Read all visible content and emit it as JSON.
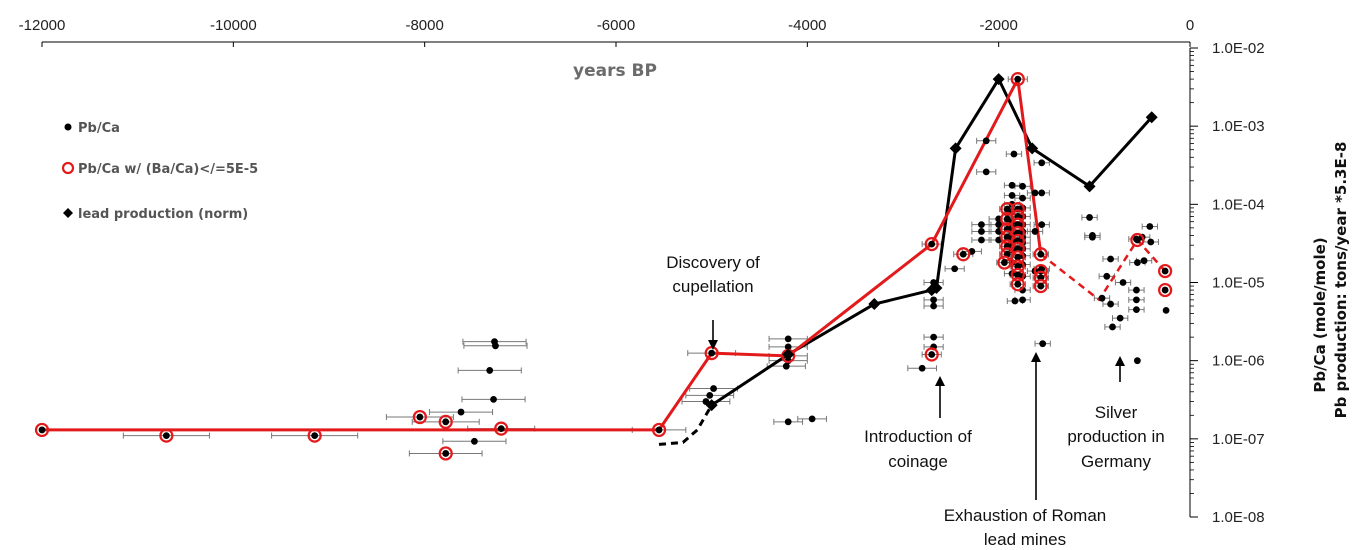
{
  "chart_data": {
    "type": "scatter",
    "title": "years BP",
    "xlabel": "years BP",
    "ylabel_lines": [
      "Pb/Ca (mole/mole)",
      "Pb production: tons/year *5.3E-8"
    ],
    "xlim": [
      -12000,
      0
    ],
    "ylim": [
      1e-08,
      0.01
    ],
    "yscale": "log",
    "x_axis_position": "top",
    "y_axis_position": "right",
    "grid": false,
    "legend_position": "top-left",
    "x_ticks": [
      -12000,
      -10000,
      -8000,
      -6000,
      -4000,
      -2000,
      0
    ],
    "x_tick_labels": [
      "-12000",
      "-10000",
      "-8000",
      "-6000",
      "-4000",
      "-2000",
      "0"
    ],
    "y_ticks": [
      0.01,
      0.001,
      0.0001,
      1e-05,
      1e-06,
      1e-07,
      1e-08
    ],
    "y_tick_labels": [
      "1.0E-02",
      "1.0E-03",
      "1.0E-04",
      "1.0E-05",
      "1.0E-06",
      "1.0E-07",
      "1.0E-08"
    ],
    "legend": [
      {
        "label": "Pb/Ca",
        "marker": "dot"
      },
      {
        "label": "Pb/Ca w/ (Ba/Ca)</=5E-5",
        "marker": "red-circle"
      },
      {
        "label": "lead production (norm)",
        "marker": "diamond"
      }
    ],
    "colors": {
      "red": "#e31a1c",
      "black": "#000000",
      "errorbar": "#777777"
    },
    "series": [
      {
        "name": "Pb/Ca",
        "points": [
          {
            "x": -7270,
            "y": 1.75e-06,
            "xerr": 330
          },
          {
            "x": -7260,
            "y": 1.55e-06,
            "xerr": 330
          },
          {
            "x": -7320,
            "y": 7.5e-07,
            "xerr": 330
          },
          {
            "x": -7280,
            "y": 3.2e-07,
            "xerr": 330
          },
          {
            "x": -7620,
            "y": 2.2e-07,
            "xerr": 330
          },
          {
            "x": -7480,
            "y": 9.3e-08,
            "xerr": 330
          },
          {
            "x": -4980,
            "y": 4.4e-07,
            "xerr": 250
          },
          {
            "x": -5020,
            "y": 3.6e-07,
            "xerr": 250
          },
          {
            "x": -5060,
            "y": 3e-07,
            "xerr": 250
          },
          {
            "x": -4200,
            "y": 1.9e-06,
            "xerr": 200
          },
          {
            "x": -4200,
            "y": 1.5e-06,
            "xerr": 200
          },
          {
            "x": -4200,
            "y": 1e-06,
            "xerr": 200
          },
          {
            "x": -4220,
            "y": 8.5e-07,
            "xerr": 200
          },
          {
            "x": -4200,
            "y": 1.65e-07,
            "xerr": 150
          },
          {
            "x": -3950,
            "y": 1.8e-07,
            "xerr": 150
          },
          {
            "x": -2800,
            "y": 8e-07,
            "xerr": 150
          },
          {
            "x": -2680,
            "y": 2e-06,
            "xerr": 100
          },
          {
            "x": -2680,
            "y": 1.5e-06,
            "xerr": 100
          },
          {
            "x": -2680,
            "y": 6e-06,
            "xerr": 100
          },
          {
            "x": -2680,
            "y": 5e-06,
            "xerr": 100
          },
          {
            "x": -2680,
            "y": 1e-05,
            "xerr": 100
          },
          {
            "x": -2460,
            "y": 1.5e-05,
            "xerr": 100
          },
          {
            "x": -2280,
            "y": 2.5e-05,
            "xerr": 100
          },
          {
            "x": -2180,
            "y": 3.5e-05,
            "xerr": 100
          },
          {
            "x": -2180,
            "y": 4.5e-05,
            "xerr": 100
          },
          {
            "x": -2180,
            "y": 5.5e-05,
            "xerr": 100
          },
          {
            "x": -2000,
            "y": 3.5e-05,
            "xerr": 100
          },
          {
            "x": -2000,
            "y": 4.5e-05,
            "xerr": 100
          },
          {
            "x": -2000,
            "y": 5.5e-05,
            "xerr": 100
          },
          {
            "x": -2000,
            "y": 6.5e-05,
            "xerr": 100
          },
          {
            "x": -2130,
            "y": 0.00065,
            "xerr": 100
          },
          {
            "x": -2130,
            "y": 0.00026,
            "xerr": 100
          },
          {
            "x": -1860,
            "y": 0.000175,
            "xerr": 80
          },
          {
            "x": -1860,
            "y": 0.00013,
            "xerr": 80
          },
          {
            "x": -1860,
            "y": 0.0001,
            "xerr": 80
          },
          {
            "x": -1860,
            "y": 8e-05,
            "xerr": 80
          },
          {
            "x": -1860,
            "y": 6e-05,
            "xerr": 80
          },
          {
            "x": -1860,
            "y": 5e-05,
            "xerr": 80
          },
          {
            "x": -1860,
            "y": 4.2e-05,
            "xerr": 80
          },
          {
            "x": -1860,
            "y": 3.5e-05,
            "xerr": 80
          },
          {
            "x": -1860,
            "y": 3e-05,
            "xerr": 80
          },
          {
            "x": -1860,
            "y": 2.6e-05,
            "xerr": 80
          },
          {
            "x": -1860,
            "y": 1.8e-05,
            "xerr": 80
          },
          {
            "x": -1860,
            "y": 1.3e-05,
            "xerr": 80
          },
          {
            "x": -1840,
            "y": 0.00044,
            "xerr": 80
          },
          {
            "x": -1750,
            "y": 0.00017,
            "xerr": 80
          },
          {
            "x": -1750,
            "y": 0.00012,
            "xerr": 80
          },
          {
            "x": -1750,
            "y": 9e-05,
            "xerr": 80
          },
          {
            "x": -1750,
            "y": 7e-05,
            "xerr": 80
          },
          {
            "x": -1750,
            "y": 5.5e-05,
            "xerr": 80
          },
          {
            "x": -1750,
            "y": 4.5e-05,
            "xerr": 80
          },
          {
            "x": -1750,
            "y": 3.8e-05,
            "xerr": 80
          },
          {
            "x": -1750,
            "y": 3.2e-05,
            "xerr": 80
          },
          {
            "x": -1750,
            "y": 2.7e-05,
            "xerr": 80
          },
          {
            "x": -1750,
            "y": 2.2e-05,
            "xerr": 80
          },
          {
            "x": -1750,
            "y": 1.7e-05,
            "xerr": 80
          },
          {
            "x": -1750,
            "y": 1.2e-05,
            "xerr": 80
          },
          {
            "x": -1750,
            "y": 8e-06,
            "xerr": 80
          },
          {
            "x": -1750,
            "y": 6e-06,
            "xerr": 80
          },
          {
            "x": -1830,
            "y": 5.8e-06,
            "xerr": 80
          },
          {
            "x": -1620,
            "y": 0.00014,
            "xerr": 80
          },
          {
            "x": -1620,
            "y": 4.5e-05,
            "xerr": 80
          },
          {
            "x": -1620,
            "y": 1.4e-05,
            "xerr": 80
          },
          {
            "x": -1550,
            "y": 0.00034,
            "xerr": 80
          },
          {
            "x": -1550,
            "y": 0.00014,
            "xerr": 80
          },
          {
            "x": -1550,
            "y": 5.5e-05,
            "xerr": 80
          },
          {
            "x": -1550,
            "y": 1.5e-05,
            "xerr": 80
          },
          {
            "x": -1540,
            "y": 1.65e-06,
            "xerr": 80
          },
          {
            "x": -1050,
            "y": 6.8e-05,
            "xerr": 80
          },
          {
            "x": -1020,
            "y": 4e-05,
            "xerr": 80
          },
          {
            "x": -1020,
            "y": 3.8e-05,
            "xerr": 80
          },
          {
            "x": -920,
            "y": 6.3e-06,
            "xerr": 80
          },
          {
            "x": -830,
            "y": 2e-05,
            "xerr": 80
          },
          {
            "x": -870,
            "y": 1.2e-05,
            "xerr": 80
          },
          {
            "x": -830,
            "y": 5.3e-06,
            "xerr": 80
          },
          {
            "x": -700,
            "y": 1e-05,
            "xerr": 80
          },
          {
            "x": -730,
            "y": 3.5e-06,
            "xerr": 80
          },
          {
            "x": -810,
            "y": 2.7e-06,
            "xerr": 80
          },
          {
            "x": -560,
            "y": 3.6e-05,
            "xerr": 80
          },
          {
            "x": -500,
            "y": 3.8e-05,
            "xerr": 80
          },
          {
            "x": -550,
            "y": 1.8e-05,
            "xerr": 80
          },
          {
            "x": -480,
            "y": 1.9e-05,
            "xerr": 80
          },
          {
            "x": -560,
            "y": 8e-06,
            "xerr": 80
          },
          {
            "x": -560,
            "y": 6e-06,
            "xerr": 80
          },
          {
            "x": -560,
            "y": 4.5e-06,
            "xerr": 80
          },
          {
            "x": -420,
            "y": 5.2e-05,
            "xerr": 80
          },
          {
            "x": -410,
            "y": 3.3e-05,
            "xerr": 80
          },
          {
            "x": -550,
            "y": 1e-06,
            "xerr": 0
          },
          {
            "x": -250,
            "y": 4.4e-06,
            "xerr": 0
          }
        ]
      },
      {
        "name": "Pb/Ca w/ (Ba/Ca)</=5E-5",
        "points": [
          {
            "x": -12000,
            "y": 1.3e-07,
            "xerr": 0
          },
          {
            "x": -10700,
            "y": 1.1e-07,
            "xerr": 450
          },
          {
            "x": -9150,
            "y": 1.1e-07,
            "xerr": 450
          },
          {
            "x": -8050,
            "y": 1.9e-07,
            "xerr": 350
          },
          {
            "x": -7780,
            "y": 1.65e-07,
            "xerr": 350
          },
          {
            "x": -7200,
            "y": 1.35e-07,
            "xerr": 350
          },
          {
            "x": -7780,
            "y": 6.5e-08,
            "xerr": 380
          },
          {
            "x": -5550,
            "y": 1.3e-07,
            "xerr": 280
          },
          {
            "x": -5000,
            "y": 1.25e-06,
            "xerr": 250
          },
          {
            "x": -4200,
            "y": 1.15e-06,
            "xerr": 200
          },
          {
            "x": -2700,
            "y": 3.1e-05,
            "xerr": 100
          },
          {
            "x": -2700,
            "y": 1.2e-06,
            "xerr": 100
          },
          {
            "x": -2370,
            "y": 2.3e-05,
            "xerr": 100
          },
          {
            "x": -1800,
            "y": 0.004,
            "xerr": 100
          },
          {
            "x": -1910,
            "y": 8.7e-05,
            "xerr": 80
          },
          {
            "x": -1910,
            "y": 6.5e-05,
            "xerr": 80
          },
          {
            "x": -1910,
            "y": 4.8e-05,
            "xerr": 80
          },
          {
            "x": -1910,
            "y": 3.8e-05,
            "xerr": 80
          },
          {
            "x": -1910,
            "y": 2.9e-05,
            "xerr": 80
          },
          {
            "x": -1910,
            "y": 2.3e-05,
            "xerr": 80
          },
          {
            "x": -1940,
            "y": 1.8e-05,
            "xerr": 80
          },
          {
            "x": -1800,
            "y": 8.7e-05,
            "xerr": 80
          },
          {
            "x": -1800,
            "y": 7e-05,
            "xerr": 80
          },
          {
            "x": -1800,
            "y": 5.5e-05,
            "xerr": 80
          },
          {
            "x": -1800,
            "y": 4.3e-05,
            "xerr": 80
          },
          {
            "x": -1800,
            "y": 3.4e-05,
            "xerr": 80
          },
          {
            "x": -1800,
            "y": 2.7e-05,
            "xerr": 80
          },
          {
            "x": -1800,
            "y": 2.1e-05,
            "xerr": 80
          },
          {
            "x": -1800,
            "y": 1.6e-05,
            "xerr": 80
          },
          {
            "x": -1800,
            "y": 1.25e-05,
            "xerr": 80
          },
          {
            "x": -1800,
            "y": 9.5e-06,
            "xerr": 80
          },
          {
            "x": -1560,
            "y": 2.3e-05,
            "xerr": 80
          },
          {
            "x": -1560,
            "y": 1.4e-05,
            "xerr": 80
          },
          {
            "x": -1560,
            "y": 1.15e-05,
            "xerr": 80
          },
          {
            "x": -1560,
            "y": 9e-06,
            "xerr": 80
          },
          {
            "x": -550,
            "y": 3.5e-05,
            "xerr": 0
          },
          {
            "x": -260,
            "y": 1.4e-05,
            "xerr": 0
          },
          {
            "x": -260,
            "y": 8e-06,
            "xerr": 0
          }
        ]
      },
      {
        "name": "lead production (norm)",
        "points": [
          {
            "x": -5000,
            "y": 2.7e-07
          },
          {
            "x": -4200,
            "y": 1.2e-06
          },
          {
            "x": -3300,
            "y": 5.3e-06
          },
          {
            "x": -2700,
            "y": 8e-06
          },
          {
            "x": -2650,
            "y": 8.5e-06
          },
          {
            "x": -2450,
            "y": 0.00052
          },
          {
            "x": -2000,
            "y": 0.004
          },
          {
            "x": -1650,
            "y": 0.00052
          },
          {
            "x": -1050,
            "y": 0.00017
          },
          {
            "x": -400,
            "y": 0.0013
          }
        ]
      }
    ],
    "lines": {
      "red_solid": [
        {
          "x": -12000,
          "y": 1.3e-07
        },
        {
          "x": -5550,
          "y": 1.3e-07
        },
        {
          "x": -5000,
          "y": 1.25e-06
        },
        {
          "x": -4200,
          "y": 1.15e-06
        },
        {
          "x": -2700,
          "y": 3.1e-05
        },
        {
          "x": -1800,
          "y": 0.004
        },
        {
          "x": -1560,
          "y": 2.3e-05
        }
      ],
      "red_dashed": [
        {
          "x": -1560,
          "y": 2.3e-05
        },
        {
          "x": -1300,
          "y": 1.3e-05
        },
        {
          "x": -950,
          "y": 6e-06
        },
        {
          "x": -550,
          "y": 3.5e-05
        },
        {
          "x": -260,
          "y": 1.4e-05
        }
      ],
      "black_solid": [
        {
          "x": -5000,
          "y": 2.7e-07
        },
        {
          "x": -4200,
          "y": 1.2e-06
        },
        {
          "x": -3300,
          "y": 5.3e-06
        },
        {
          "x": -2700,
          "y": 8e-06
        },
        {
          "x": -2650,
          "y": 8.5e-06
        },
        {
          "x": -2450,
          "y": 0.00052
        },
        {
          "x": -2000,
          "y": 0.004
        },
        {
          "x": -1650,
          "y": 0.00052
        },
        {
          "x": -1050,
          "y": 0.00017
        },
        {
          "x": -400,
          "y": 0.0013
        }
      ],
      "black_dashed": [
        {
          "x": -5550,
          "y": 8.5e-08
        },
        {
          "x": -5300,
          "y": 9e-08
        },
        {
          "x": -5150,
          "y": 1.3e-07
        },
        {
          "x": -5000,
          "y": 2.7e-07
        }
      ]
    },
    "annotations": [
      {
        "lines": [
          "Discovery of",
          "cupellation"
        ],
        "x": -5000,
        "y": 2e-06
      },
      {
        "lines": [
          "Introduction of",
          "coinage"
        ],
        "x": -2700,
        "y": 8e-07
      },
      {
        "lines": [
          "Exhaustion of Roman",
          "lead mines"
        ],
        "x": -1650,
        "y": 5e-06
      },
      {
        "lines": [
          "Silver",
          "production in",
          "Germany"
        ],
        "x": -750,
        "y": 1.1e-06
      }
    ]
  }
}
